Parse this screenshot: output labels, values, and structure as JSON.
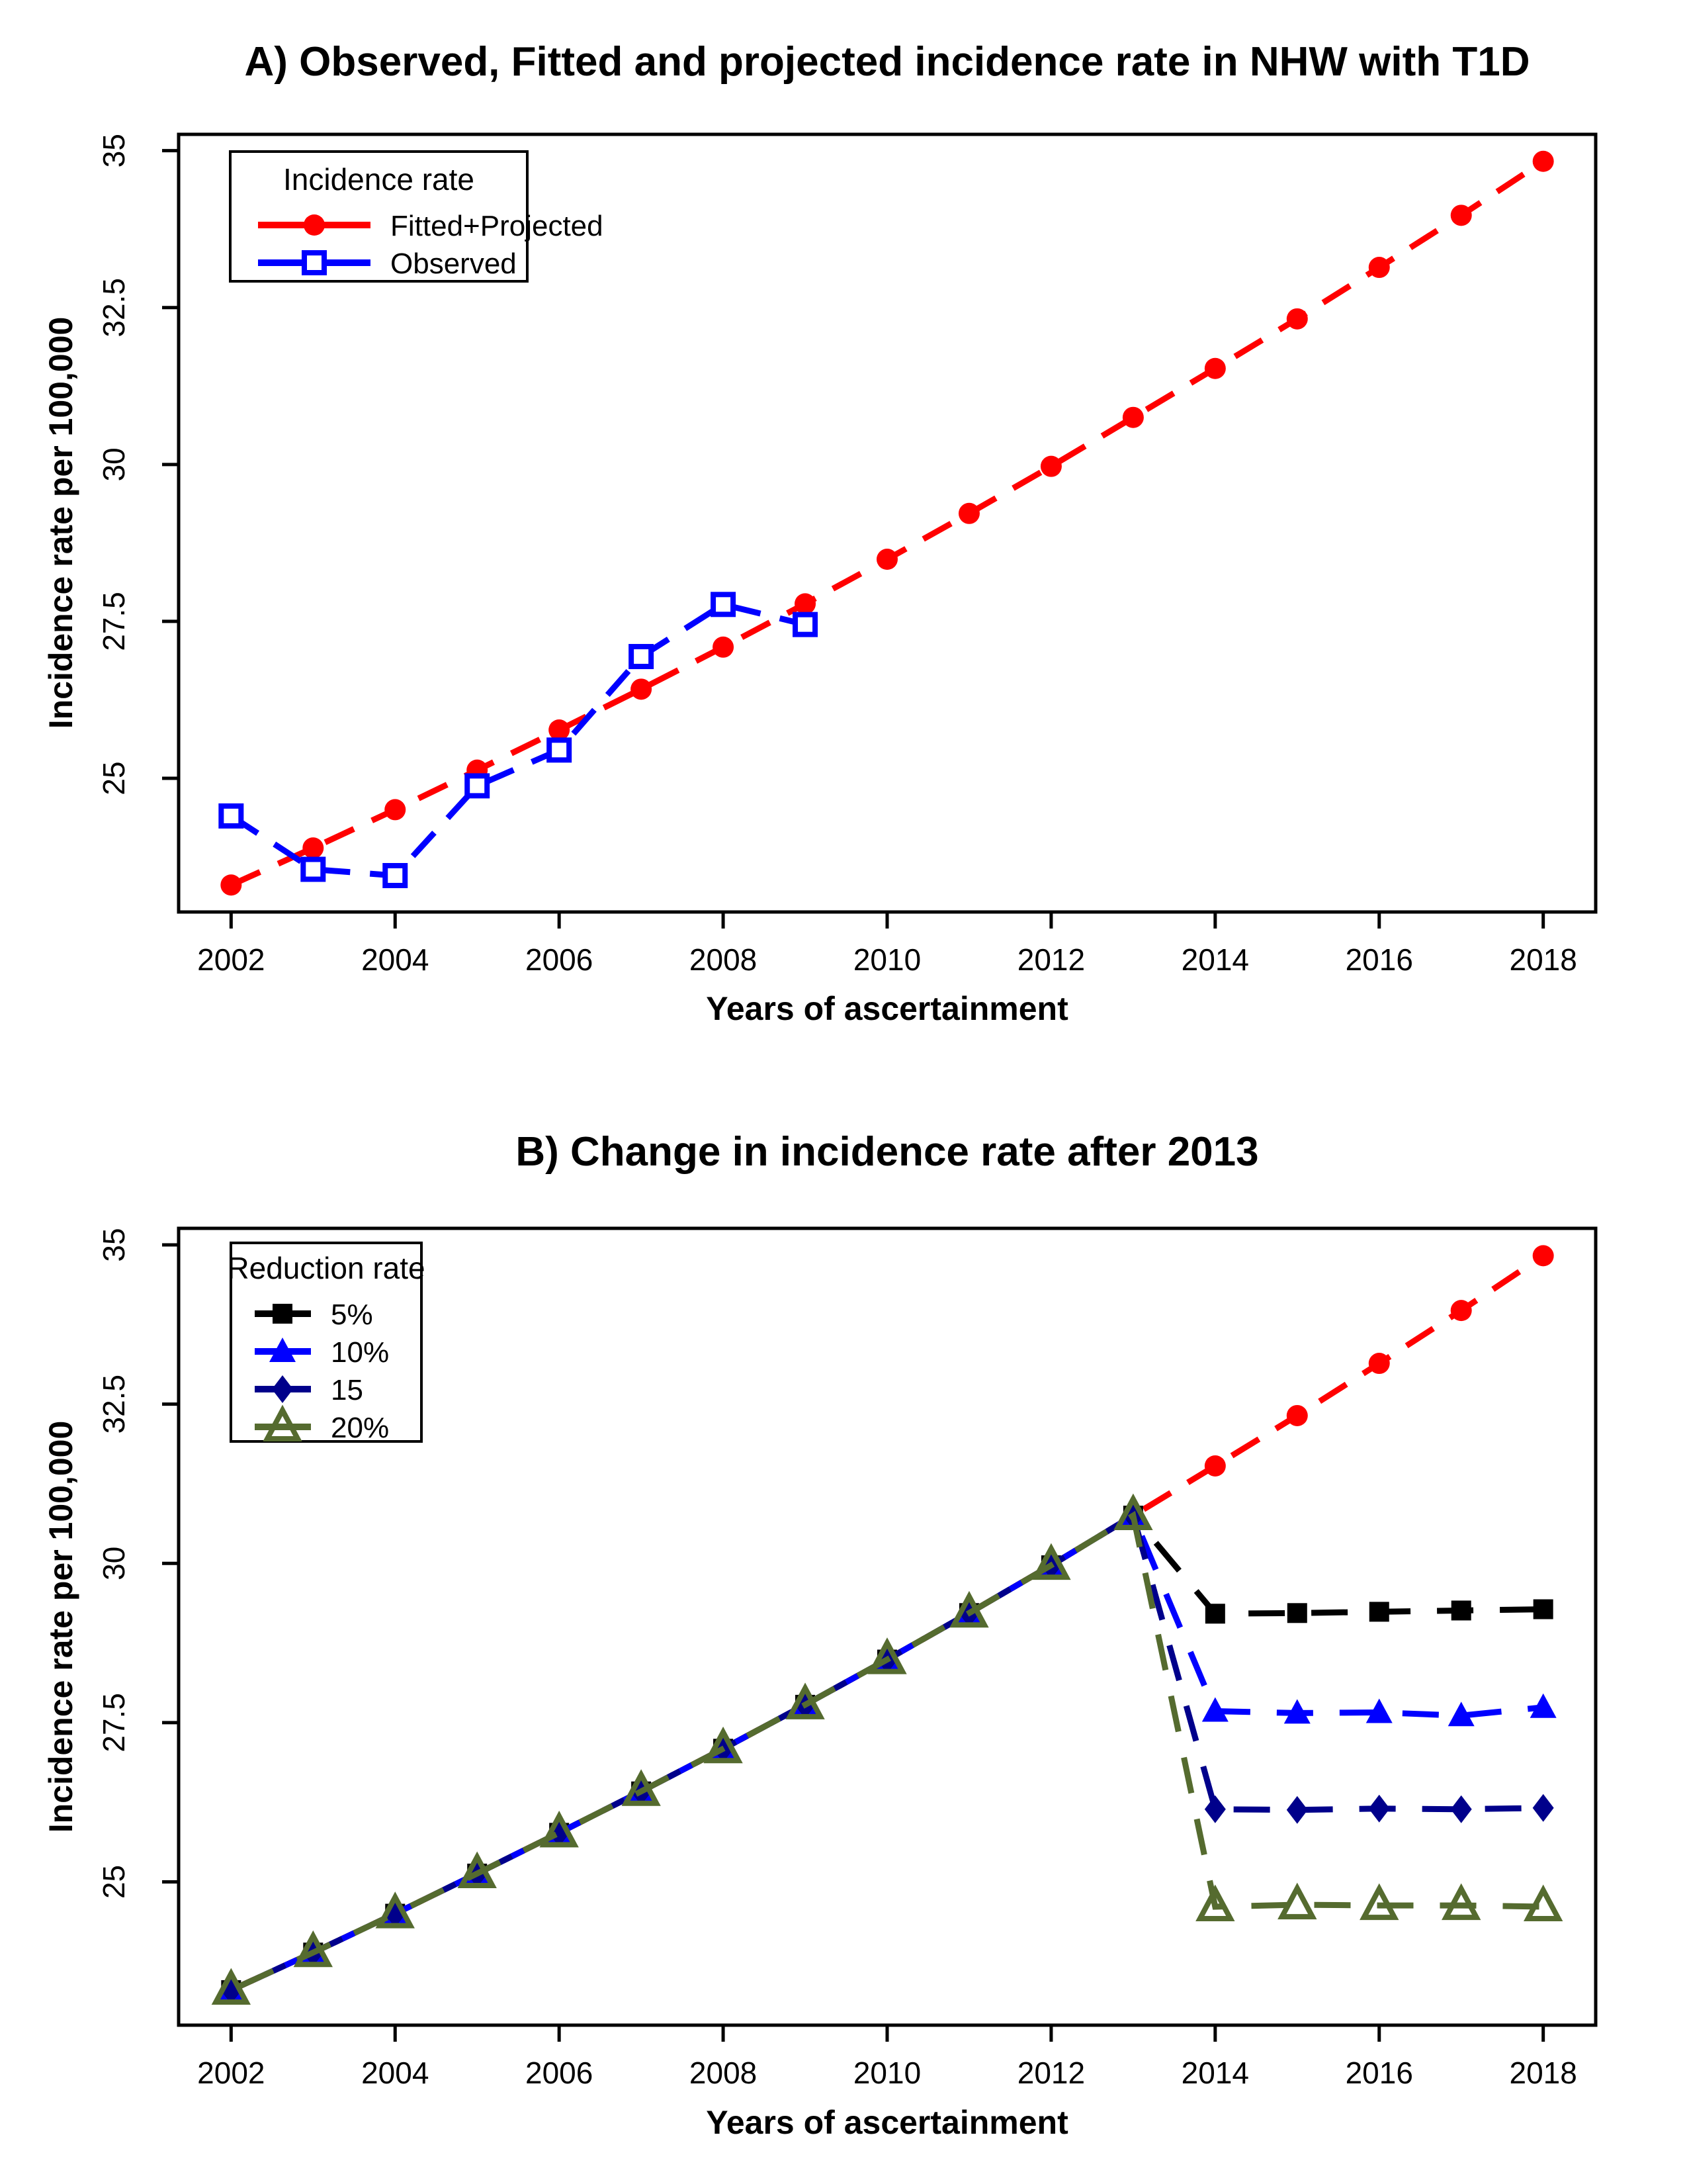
{
  "figure": {
    "background": "#FFFFFF",
    "text_color": "#000000",
    "axis_color": "#000000"
  },
  "chart_data": [
    {
      "type": "line",
      "title": "A) Observed, Fitted and projected incidence rate in NHW with T1D",
      "xlabel": "Years of ascertainment",
      "ylabel": "Incidence rate per 100,000",
      "xlim": [
        2001.36,
        2018.64
      ],
      "ylim": [
        22.87,
        35.26
      ],
      "x_ticks": [
        2002,
        2004,
        2006,
        2008,
        2010,
        2012,
        2014,
        2016,
        2018
      ],
      "y_ticks": [
        25,
        27.5,
        30,
        32.5,
        35
      ],
      "y_tick_labels": [
        "25",
        "27.5",
        "30",
        "32.5",
        "35"
      ],
      "grid": false,
      "legend": {
        "title": "Incidence rate",
        "position": "top-left"
      },
      "series": [
        {
          "name": "Fitted+Projected",
          "color": "#FF0000",
          "marker": "circle-filled",
          "dash": "48,30",
          "dash_offset": 0,
          "x": [
            2002,
            2003,
            2004,
            2005,
            2006,
            2007,
            2008,
            2009,
            2010,
            2011,
            2012,
            2013,
            2014,
            2015,
            2016,
            2017,
            2018
          ],
          "y": [
            23.3,
            23.89,
            24.5,
            25.13,
            25.77,
            26.42,
            27.09,
            27.78,
            28.49,
            29.22,
            29.97,
            30.75,
            31.53,
            32.32,
            33.14,
            33.97,
            34.83
          ]
        },
        {
          "name": "Observed",
          "color": "#0000FF",
          "marker": "square-open",
          "dash": "48,30",
          "dash_offset": 0,
          "x": [
            2002,
            2003,
            2004,
            2005,
            2006,
            2007,
            2008,
            2009
          ],
          "y": [
            24.4,
            23.55,
            23.45,
            24.88,
            25.45,
            26.94,
            27.77,
            27.45
          ]
        }
      ]
    },
    {
      "type": "line",
      "title": "B) Change in incidence rate after 2013",
      "xlabel": "Years of ascertainment",
      "ylabel": "Incidence rate per 100,000",
      "xlim": [
        2001.36,
        2018.64
      ],
      "ylim": [
        22.75,
        35.26
      ],
      "x_ticks": [
        2002,
        2004,
        2006,
        2008,
        2010,
        2012,
        2014,
        2016,
        2018
      ],
      "y_ticks": [
        25,
        27.5,
        30,
        32.5,
        35
      ],
      "y_tick_labels": [
        "25",
        "27.5",
        "30",
        "32.5",
        "35"
      ],
      "grid": false,
      "legend": {
        "title": "Reduction rate",
        "position": "top-left"
      },
      "series": [
        {
          "name": "Fitted+Projected",
          "color": "#FF0000",
          "marker": "circle-filled",
          "dash": "48,30",
          "dash_offset": 0,
          "in_legend": false,
          "x": [
            2002,
            2003,
            2004,
            2005,
            2006,
            2007,
            2008,
            2009,
            2010,
            2011,
            2012,
            2013,
            2014,
            2015,
            2016,
            2017,
            2018
          ],
          "y": [
            23.3,
            23.89,
            24.5,
            25.13,
            25.77,
            26.42,
            27.09,
            27.78,
            28.49,
            29.22,
            29.97,
            30.75,
            31.53,
            32.32,
            33.14,
            33.97,
            34.83
          ]
        },
        {
          "name": "5%",
          "color": "#000000",
          "marker": "square-filled",
          "dash": "55,40",
          "dash_offset": 20,
          "x": [
            2002,
            2003,
            2004,
            2005,
            2006,
            2007,
            2008,
            2009,
            2010,
            2011,
            2012,
            2013,
            2014,
            2015,
            2016,
            2017,
            2018
          ],
          "y": [
            23.3,
            23.89,
            24.5,
            25.13,
            25.77,
            26.42,
            27.09,
            27.78,
            28.49,
            29.22,
            29.97,
            30.75,
            29.21,
            29.22,
            29.24,
            29.26,
            29.28
          ]
        },
        {
          "name": "10%",
          "color": "#0000FF",
          "marker": "triangle-filled",
          "dash": "55,40",
          "dash_offset": 40,
          "x": [
            2002,
            2003,
            2004,
            2005,
            2006,
            2007,
            2008,
            2009,
            2010,
            2011,
            2012,
            2013,
            2014,
            2015,
            2016,
            2017,
            2018
          ],
          "y": [
            23.3,
            23.89,
            24.5,
            25.13,
            25.77,
            26.42,
            27.09,
            27.78,
            28.49,
            29.22,
            29.97,
            30.75,
            27.68,
            27.65,
            27.66,
            27.61,
            27.74
          ]
        },
        {
          "name": "15",
          "color": "#00008B",
          "marker": "diamond-filled",
          "dash": "55,40",
          "dash_offset": 60,
          "x": [
            2002,
            2003,
            2004,
            2005,
            2006,
            2007,
            2008,
            2009,
            2010,
            2011,
            2012,
            2013,
            2014,
            2015,
            2016,
            2017,
            2018
          ],
          "y": [
            23.3,
            23.89,
            24.5,
            25.13,
            25.77,
            26.42,
            27.09,
            27.78,
            28.49,
            29.22,
            29.97,
            30.75,
            26.14,
            26.13,
            26.15,
            26.14,
            26.16
          ]
        },
        {
          "name": "20%",
          "color": "#556B2F",
          "marker": "triangle-open",
          "dash": "55,40",
          "dash_offset": 80,
          "x": [
            2002,
            2003,
            2004,
            2005,
            2006,
            2007,
            2008,
            2009,
            2010,
            2011,
            2012,
            2013,
            2014,
            2015,
            2016,
            2017,
            2018
          ],
          "y": [
            23.3,
            23.89,
            24.5,
            25.13,
            25.77,
            26.42,
            27.09,
            27.78,
            28.49,
            29.22,
            29.97,
            30.75,
            24.61,
            24.64,
            24.63,
            24.63,
            24.61
          ]
        }
      ]
    }
  ]
}
